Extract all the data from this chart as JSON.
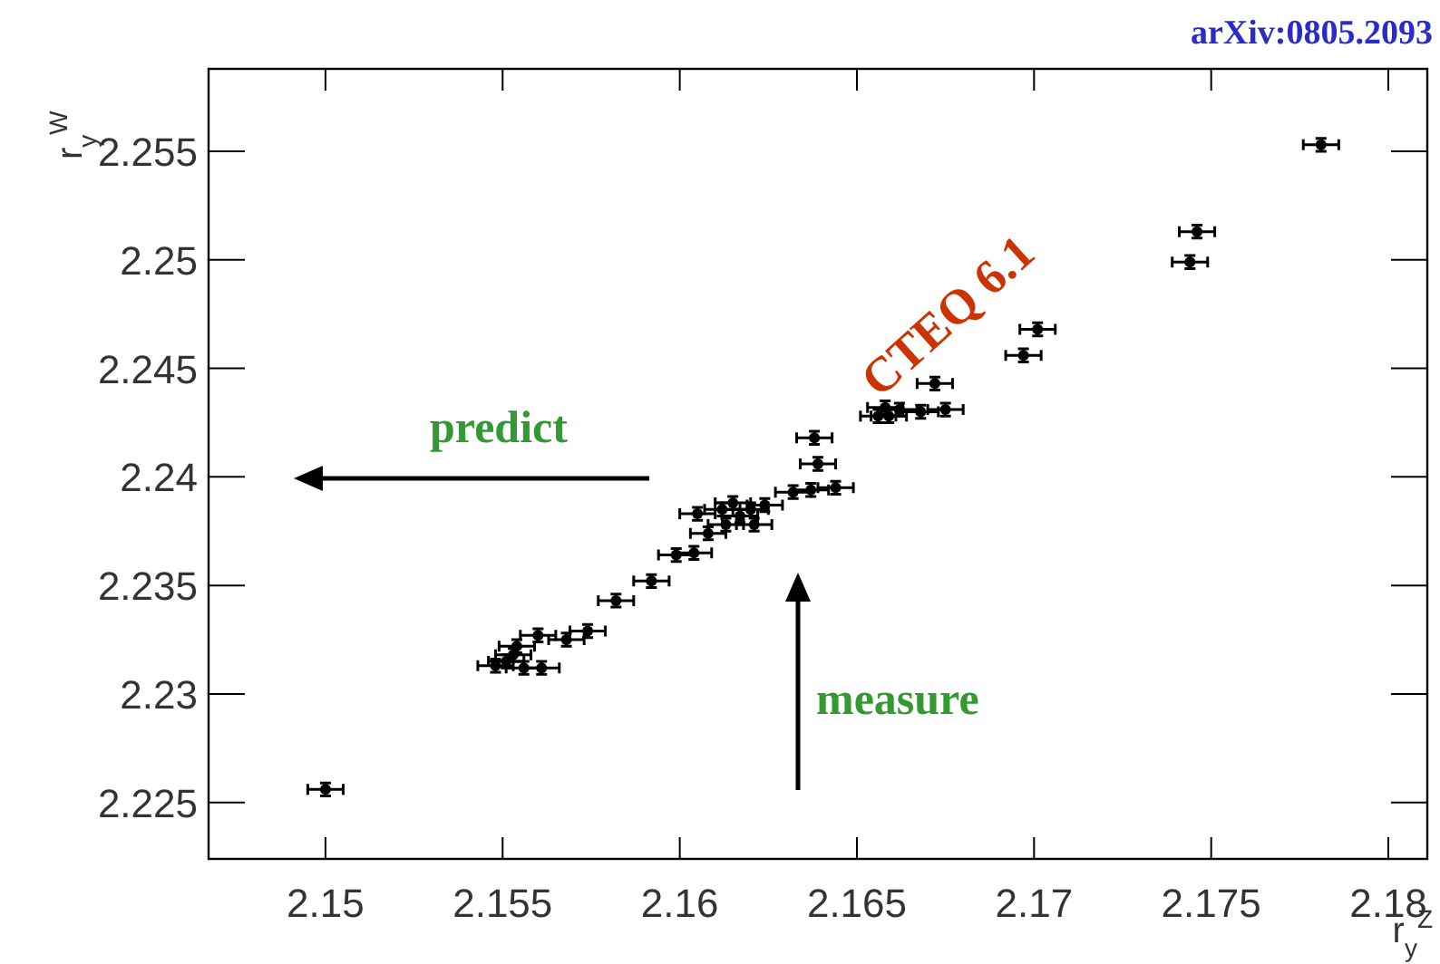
{
  "chart_data": {
    "type": "scatter",
    "xlabel": "r$_{y}$$^{Z}$",
    "ylabel": "r$_{y}$$^{W}$",
    "x": [
      2.15,
      2.1781,
      2.1746,
      2.1744,
      2.1701,
      2.1697,
      2.1672,
      2.1675,
      2.1668,
      2.1662,
      2.1659,
      2.1658,
      2.1656,
      2.1638,
      2.1639,
      2.1644,
      2.1637,
      2.1632,
      2.1624,
      2.162,
      2.1617,
      2.1613,
      2.1621,
      2.1608,
      2.1615,
      2.1612,
      2.1605,
      2.1599,
      2.1604,
      2.1592,
      2.1582,
      2.1574,
      2.1568,
      2.156,
      2.1561,
      2.1556,
      2.1548,
      2.1553,
      2.1554,
      2.1551
    ],
    "series": [
      {
        "color": "#000000",
        "values": [
          2.2256,
          2.2553,
          2.2513,
          2.2499,
          2.2468,
          2.2456,
          2.2443,
          2.2431,
          2.243,
          2.2431,
          2.2428,
          2.2432,
          2.2428,
          2.2418,
          2.2406,
          2.2395,
          2.2394,
          2.2393,
          2.2387,
          2.2385,
          2.2382,
          2.2378,
          2.2378,
          2.2374,
          2.2388,
          2.2385,
          2.2383,
          2.2364,
          2.2365,
          2.2352,
          2.2343,
          2.2329,
          2.2325,
          2.2327,
          2.2312,
          2.2312,
          2.2313,
          2.2318,
          2.2322,
          2.2315
        ],
        "errors": [
          0.0003,
          0.0003,
          0.0003,
          0.0003,
          0.0003,
          0.0003,
          0.0003,
          0.0003,
          0.0003,
          0.0003,
          0.0003,
          0.0003,
          0.0003,
          0.0003,
          0.0003,
          0.0003,
          0.0003,
          0.0003,
          0.0003,
          0.0003,
          0.0003,
          0.0003,
          0.0003,
          0.0003,
          0.0003,
          0.0003,
          0.0003,
          0.0003,
          0.0003,
          0.0003,
          0.0003,
          0.0003,
          0.0003,
          0.0003,
          0.0003,
          0.0003,
          0.0003,
          0.0003,
          0.0003,
          0.0003
        ],
        "xerrors": [
          0.0005,
          0.0005,
          0.0005,
          0.0005,
          0.0005,
          0.0005,
          0.0005,
          0.0005,
          0.0005,
          0.0005,
          0.0005,
          0.0005,
          0.0005,
          0.0005,
          0.0005,
          0.0005,
          0.0005,
          0.0005,
          0.0005,
          0.0005,
          0.0005,
          0.0005,
          0.0005,
          0.0005,
          0.0005,
          0.0005,
          0.0005,
          0.0005,
          0.0005,
          0.0005,
          0.0005,
          0.0005,
          0.0005,
          0.0005,
          0.0005,
          0.0005,
          0.0005,
          0.0005,
          0.0005,
          0.0005
        ]
      }
    ],
    "xlim": [
      2.1467,
      2.1811
    ],
    "ylim": [
      2.2224,
      2.2588
    ],
    "xticks": [
      2.15,
      2.155,
      2.16,
      2.165,
      2.17,
      2.175,
      2.18
    ],
    "yticks": [
      2.225,
      2.23,
      2.235,
      2.24,
      2.245,
      2.25,
      2.255
    ],
    "marker": "circle",
    "grid": false,
    "annotations": [
      {
        "text": "arXiv:0805.2093"
      },
      {
        "text": "CTEQ 6.1"
      },
      {
        "text": "predict"
      },
      {
        "text": "measure"
      }
    ]
  }
}
